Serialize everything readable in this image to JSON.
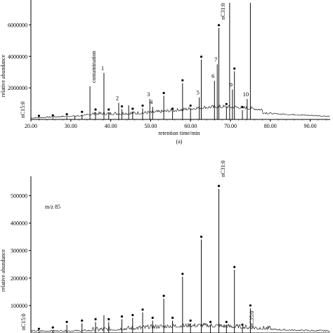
{
  "chart_data": [
    {
      "type": "line",
      "panel": "top",
      "xlabel": "retention time/min",
      "ylabel": "relative abundance",
      "caption": "(a)",
      "xlim": [
        20,
        95
      ],
      "ylim": [
        0,
        7400000
      ],
      "x_ticks": [
        "20.00",
        "30.00",
        "40.00",
        "50.00",
        "60.00",
        "70.00",
        "80.00",
        "90.00"
      ],
      "x_tick_values": [
        20,
        30,
        40,
        50,
        60,
        70,
        80,
        90
      ],
      "y_ticks": [
        "2000000",
        "4000000",
        "6000000"
      ],
      "y_tick_values": [
        2000000,
        4000000,
        6000000
      ],
      "peaks": [
        {
          "x": 22.0,
          "y": 50000,
          "dot": true
        },
        {
          "x": 25.5,
          "y": 80000,
          "dot": true
        },
        {
          "x": 29.0,
          "y": 150000,
          "dot": true
        },
        {
          "x": 31.0,
          "y": 200000
        },
        {
          "x": 32.8,
          "y": 300000,
          "dot": true
        },
        {
          "x": 34.8,
          "y": 2100000,
          "label_key": "contamination"
        },
        {
          "x": 36.2,
          "y": 450000,
          "dot": true
        },
        {
          "x": 38.3,
          "y": 2950000,
          "label": "1"
        },
        {
          "x": 39.5,
          "y": 450000,
          "dot": true
        },
        {
          "x": 42.0,
          "y": 1050000,
          "label": "2"
        },
        {
          "x": 42.8,
          "y": 650000,
          "dot": true
        },
        {
          "x": 44.5,
          "y": 900000
        },
        {
          "x": 45.5,
          "y": 500000,
          "dot": true
        },
        {
          "x": 48.0,
          "y": 700000,
          "dot": true
        },
        {
          "x": 49.8,
          "y": 1300000,
          "label": "3"
        },
        {
          "x": 50.5,
          "y": 800000,
          "label": "4"
        },
        {
          "x": 53.3,
          "y": 1500000,
          "dot": true
        },
        {
          "x": 55.5,
          "y": 500000,
          "dot": true
        },
        {
          "x": 58.0,
          "y": 2300000,
          "dot": true
        },
        {
          "x": 60.0,
          "y": 700000,
          "dot": true
        },
        {
          "x": 62.2,
          "y": 1400000,
          "label": "5"
        },
        {
          "x": 62.7,
          "y": 3800000,
          "dot": true
        },
        {
          "x": 66.0,
          "y": 2450000,
          "label": "6"
        },
        {
          "x": 66.7,
          "y": 3500000,
          "label": "7"
        },
        {
          "x": 67.1,
          "y": 5800000,
          "dot": true,
          "label_key": "nC31_top"
        },
        {
          "x": 69.0,
          "y": 800000,
          "dot": true
        },
        {
          "x": 69.8,
          "y": 7400000
        },
        {
          "x": 70.5,
          "y": 1900000,
          "label": "9"
        },
        {
          "x": 71.0,
          "y": 3050000,
          "dot": true
        },
        {
          "x": 73.0,
          "y": 600000,
          "dot": true
        },
        {
          "x": 74.2,
          "y": 1300000,
          "label": "10"
        },
        {
          "x": 75.0,
          "y": 7400000
        }
      ],
      "annotations": {
        "nC15": "nC15:0",
        "contamination": "contamination",
        "nC31_top": "nC31:0"
      }
    },
    {
      "type": "line",
      "panel": "bottom",
      "ylabel": "relative abundance",
      "ion_label": "m/z 85",
      "xlim": [
        20,
        95
      ],
      "ylim": [
        0,
        560000
      ],
      "y_ticks": [
        "100000",
        "200000",
        "300000",
        "400000",
        "500000"
      ],
      "y_tick_values": [
        100000,
        200000,
        300000,
        400000,
        500000
      ],
      "peaks": [
        {
          "x": 22.0,
          "y": 5000,
          "dot": true
        },
        {
          "x": 25.5,
          "y": 10000,
          "dot": true
        },
        {
          "x": 29.0,
          "y": 30000,
          "dot": true
        },
        {
          "x": 32.8,
          "y": 35000,
          "dot": true
        },
        {
          "x": 36.2,
          "y": 40000,
          "dot": true
        },
        {
          "x": 38.3,
          "y": 65000
        },
        {
          "x": 39.5,
          "y": 40000,
          "dot": true
        },
        {
          "x": 42.8,
          "y": 50000,
          "dot": true
        },
        {
          "x": 45.5,
          "y": 55000,
          "dot": true
        },
        {
          "x": 48.0,
          "y": 75000,
          "dot": true
        },
        {
          "x": 50.5,
          "y": 45000,
          "dot": true
        },
        {
          "x": 53.3,
          "y": 125000,
          "dot": true
        },
        {
          "x": 55.5,
          "y": 45000,
          "dot": true
        },
        {
          "x": 58.0,
          "y": 205000,
          "dot": true
        },
        {
          "x": 60.0,
          "y": 35000,
          "dot": true
        },
        {
          "x": 62.7,
          "y": 340000,
          "dot": true
        },
        {
          "x": 65.0,
          "y": 30000,
          "dot": true
        },
        {
          "x": 67.1,
          "y": 525000,
          "dot": true
        },
        {
          "x": 69.0,
          "y": 30000,
          "dot": true
        },
        {
          "x": 71.0,
          "y": 230000,
          "dot": true
        },
        {
          "x": 73.0,
          "y": 20000,
          "dot": true
        },
        {
          "x": 75.0,
          "y": 90000,
          "dot": true
        }
      ],
      "annotations": {
        "nC15": "nC15:0",
        "nC31": "nC31:0",
        "nC35": "nC35:0"
      }
    }
  ]
}
